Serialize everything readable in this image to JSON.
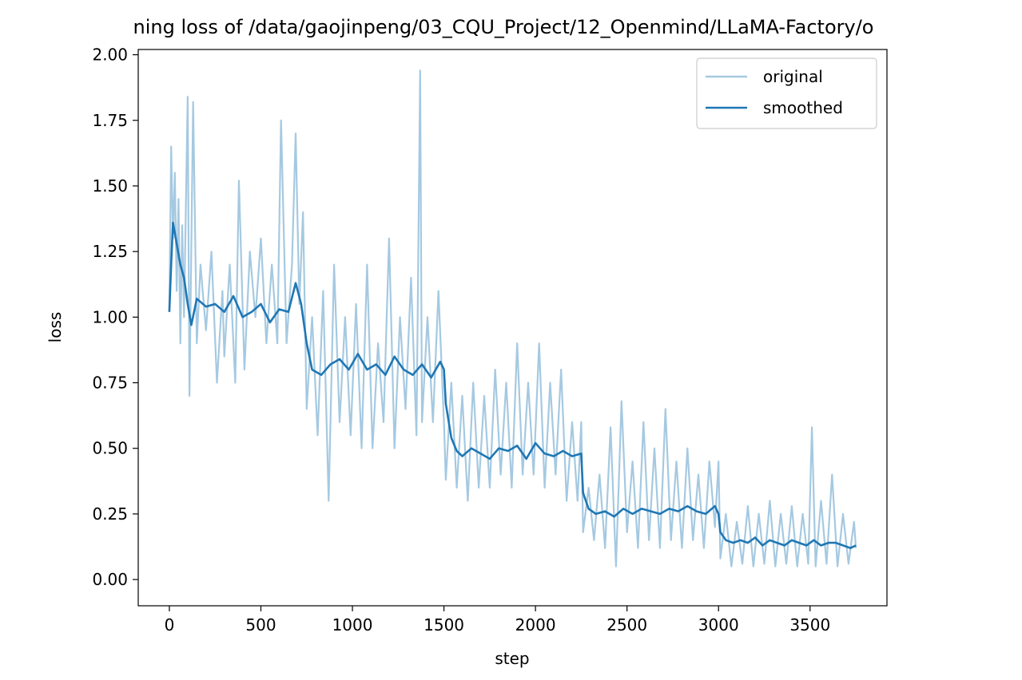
{
  "chart_data": {
    "type": "line",
    "title": "ning loss of /data/gaojinpeng/03_CQU_Project/12_Openmind/LLaMA-Factory/o",
    "xlabel": "step",
    "ylabel": "loss",
    "xlim": [
      -170,
      3920
    ],
    "ylim": [
      -0.1,
      2.02
    ],
    "xticks": [
      0,
      500,
      1000,
      1500,
      2000,
      2500,
      3000,
      3500
    ],
    "xtick_labels": [
      "0",
      "500",
      "1000",
      "1500",
      "2000",
      "2500",
      "3000",
      "3500"
    ],
    "yticks": [
      0.0,
      0.25,
      0.5,
      0.75,
      1.0,
      1.25,
      1.5,
      1.75,
      2.0
    ],
    "ytick_labels": [
      "0.00",
      "0.25",
      "0.50",
      "0.75",
      "1.00",
      "1.25",
      "1.50",
      "1.75",
      "2.00"
    ],
    "grid": false,
    "legend": "top-right",
    "series": [
      {
        "name": "original",
        "color": "#1f77b4",
        "alpha": 0.4,
        "points": [
          [
            0,
            1.02
          ],
          [
            10,
            1.65
          ],
          [
            20,
            1.3
          ],
          [
            30,
            1.55
          ],
          [
            40,
            1.1
          ],
          [
            50,
            1.45
          ],
          [
            60,
            0.9
          ],
          [
            70,
            1.35
          ],
          [
            80,
            1.0
          ],
          [
            100,
            1.84
          ],
          [
            110,
            0.7
          ],
          [
            130,
            1.82
          ],
          [
            150,
            0.9
          ],
          [
            170,
            1.2
          ],
          [
            200,
            0.95
          ],
          [
            230,
            1.25
          ],
          [
            260,
            0.75
          ],
          [
            290,
            1.1
          ],
          [
            300,
            0.85
          ],
          [
            330,
            1.2
          ],
          [
            360,
            0.75
          ],
          [
            380,
            1.52
          ],
          [
            410,
            0.8
          ],
          [
            440,
            1.25
          ],
          [
            470,
            1.0
          ],
          [
            500,
            1.3
          ],
          [
            530,
            0.9
          ],
          [
            560,
            1.2
          ],
          [
            590,
            0.9
          ],
          [
            610,
            1.75
          ],
          [
            640,
            0.9
          ],
          [
            670,
            1.2
          ],
          [
            690,
            1.7
          ],
          [
            710,
            1.05
          ],
          [
            730,
            1.4
          ],
          [
            750,
            0.65
          ],
          [
            780,
            1.0
          ],
          [
            810,
            0.55
          ],
          [
            840,
            1.1
          ],
          [
            870,
            0.3
          ],
          [
            900,
            1.2
          ],
          [
            930,
            0.6
          ],
          [
            960,
            1.0
          ],
          [
            990,
            0.55
          ],
          [
            1020,
            1.05
          ],
          [
            1050,
            0.5
          ],
          [
            1080,
            1.2
          ],
          [
            1110,
            0.5
          ],
          [
            1140,
            0.9
          ],
          [
            1170,
            0.6
          ],
          [
            1200,
            1.3
          ],
          [
            1230,
            0.5
          ],
          [
            1260,
            1.0
          ],
          [
            1290,
            0.65
          ],
          [
            1320,
            1.15
          ],
          [
            1350,
            0.55
          ],
          [
            1370,
            1.94
          ],
          [
            1380,
            0.6
          ],
          [
            1410,
            1.0
          ],
          [
            1440,
            0.6
          ],
          [
            1470,
            1.1
          ],
          [
            1500,
            0.6
          ],
          [
            1510,
            0.38
          ],
          [
            1540,
            0.75
          ],
          [
            1570,
            0.35
          ],
          [
            1600,
            0.7
          ],
          [
            1630,
            0.3
          ],
          [
            1660,
            0.75
          ],
          [
            1690,
            0.35
          ],
          [
            1720,
            0.7
          ],
          [
            1750,
            0.35
          ],
          [
            1780,
            0.8
          ],
          [
            1810,
            0.4
          ],
          [
            1840,
            0.75
          ],
          [
            1870,
            0.35
          ],
          [
            1900,
            0.9
          ],
          [
            1930,
            0.4
          ],
          [
            1960,
            0.75
          ],
          [
            1990,
            0.4
          ],
          [
            2020,
            0.9
          ],
          [
            2050,
            0.35
          ],
          [
            2080,
            0.75
          ],
          [
            2110,
            0.4
          ],
          [
            2140,
            0.8
          ],
          [
            2170,
            0.3
          ],
          [
            2200,
            0.6
          ],
          [
            2230,
            0.3
          ],
          [
            2250,
            0.6
          ],
          [
            2260,
            0.18
          ],
          [
            2290,
            0.35
          ],
          [
            2320,
            0.15
          ],
          [
            2350,
            0.4
          ],
          [
            2380,
            0.12
          ],
          [
            2410,
            0.58
          ],
          [
            2440,
            0.05
          ],
          [
            2470,
            0.68
          ],
          [
            2500,
            0.18
          ],
          [
            2530,
            0.45
          ],
          [
            2560,
            0.12
          ],
          [
            2590,
            0.6
          ],
          [
            2620,
            0.15
          ],
          [
            2650,
            0.5
          ],
          [
            2680,
            0.12
          ],
          [
            2710,
            0.65
          ],
          [
            2740,
            0.15
          ],
          [
            2770,
            0.45
          ],
          [
            2800,
            0.12
          ],
          [
            2830,
            0.5
          ],
          [
            2860,
            0.15
          ],
          [
            2890,
            0.4
          ],
          [
            2920,
            0.12
          ],
          [
            2950,
            0.45
          ],
          [
            2980,
            0.2
          ],
          [
            3000,
            0.45
          ],
          [
            3010,
            0.08
          ],
          [
            3040,
            0.25
          ],
          [
            3070,
            0.05
          ],
          [
            3100,
            0.22
          ],
          [
            3130,
            0.06
          ],
          [
            3160,
            0.28
          ],
          [
            3190,
            0.05
          ],
          [
            3220,
            0.25
          ],
          [
            3250,
            0.06
          ],
          [
            3280,
            0.3
          ],
          [
            3310,
            0.05
          ],
          [
            3340,
            0.25
          ],
          [
            3370,
            0.06
          ],
          [
            3400,
            0.28
          ],
          [
            3430,
            0.05
          ],
          [
            3460,
            0.25
          ],
          [
            3490,
            0.06
          ],
          [
            3510,
            0.58
          ],
          [
            3530,
            0.05
          ],
          [
            3560,
            0.3
          ],
          [
            3590,
            0.06
          ],
          [
            3620,
            0.4
          ],
          [
            3650,
            0.05
          ],
          [
            3680,
            0.25
          ],
          [
            3710,
            0.06
          ],
          [
            3740,
            0.22
          ],
          [
            3750,
            0.12
          ]
        ]
      },
      {
        "name": "smoothed",
        "color": "#1f77b4",
        "alpha": 1.0,
        "points": [
          [
            0,
            1.02
          ],
          [
            10,
            1.2
          ],
          [
            20,
            1.36
          ],
          [
            40,
            1.28
          ],
          [
            60,
            1.2
          ],
          [
            80,
            1.15
          ],
          [
            100,
            1.05
          ],
          [
            120,
            0.97
          ],
          [
            150,
            1.07
          ],
          [
            200,
            1.04
          ],
          [
            250,
            1.05
          ],
          [
            300,
            1.02
          ],
          [
            350,
            1.08
          ],
          [
            400,
            1.0
          ],
          [
            450,
            1.02
          ],
          [
            500,
            1.05
          ],
          [
            550,
            0.98
          ],
          [
            600,
            1.03
          ],
          [
            650,
            1.02
          ],
          [
            690,
            1.13
          ],
          [
            720,
            1.05
          ],
          [
            750,
            0.9
          ],
          [
            780,
            0.8
          ],
          [
            830,
            0.78
          ],
          [
            880,
            0.82
          ],
          [
            930,
            0.84
          ],
          [
            980,
            0.8
          ],
          [
            1030,
            0.86
          ],
          [
            1080,
            0.8
          ],
          [
            1130,
            0.82
          ],
          [
            1180,
            0.78
          ],
          [
            1230,
            0.85
          ],
          [
            1280,
            0.8
          ],
          [
            1330,
            0.78
          ],
          [
            1380,
            0.82
          ],
          [
            1430,
            0.77
          ],
          [
            1480,
            0.83
          ],
          [
            1500,
            0.8
          ],
          [
            1510,
            0.67
          ],
          [
            1540,
            0.54
          ],
          [
            1570,
            0.49
          ],
          [
            1600,
            0.47
          ],
          [
            1650,
            0.5
          ],
          [
            1700,
            0.48
          ],
          [
            1750,
            0.46
          ],
          [
            1800,
            0.5
          ],
          [
            1850,
            0.49
          ],
          [
            1900,
            0.51
          ],
          [
            1950,
            0.46
          ],
          [
            2000,
            0.52
          ],
          [
            2050,
            0.48
          ],
          [
            2100,
            0.47
          ],
          [
            2150,
            0.49
          ],
          [
            2200,
            0.47
          ],
          [
            2250,
            0.48
          ],
          [
            2260,
            0.33
          ],
          [
            2290,
            0.27
          ],
          [
            2330,
            0.25
          ],
          [
            2380,
            0.26
          ],
          [
            2430,
            0.24
          ],
          [
            2480,
            0.27
          ],
          [
            2530,
            0.25
          ],
          [
            2580,
            0.27
          ],
          [
            2630,
            0.26
          ],
          [
            2680,
            0.25
          ],
          [
            2730,
            0.27
          ],
          [
            2780,
            0.26
          ],
          [
            2830,
            0.28
          ],
          [
            2880,
            0.26
          ],
          [
            2930,
            0.25
          ],
          [
            2980,
            0.28
          ],
          [
            3000,
            0.25
          ],
          [
            3010,
            0.18
          ],
          [
            3040,
            0.15
          ],
          [
            3080,
            0.14
          ],
          [
            3120,
            0.15
          ],
          [
            3160,
            0.14
          ],
          [
            3200,
            0.16
          ],
          [
            3240,
            0.13
          ],
          [
            3280,
            0.15
          ],
          [
            3320,
            0.14
          ],
          [
            3360,
            0.13
          ],
          [
            3400,
            0.15
          ],
          [
            3440,
            0.14
          ],
          [
            3480,
            0.13
          ],
          [
            3520,
            0.15
          ],
          [
            3560,
            0.13
          ],
          [
            3600,
            0.14
          ],
          [
            3640,
            0.14
          ],
          [
            3680,
            0.13
          ],
          [
            3720,
            0.12
          ],
          [
            3750,
            0.13
          ]
        ]
      }
    ]
  }
}
